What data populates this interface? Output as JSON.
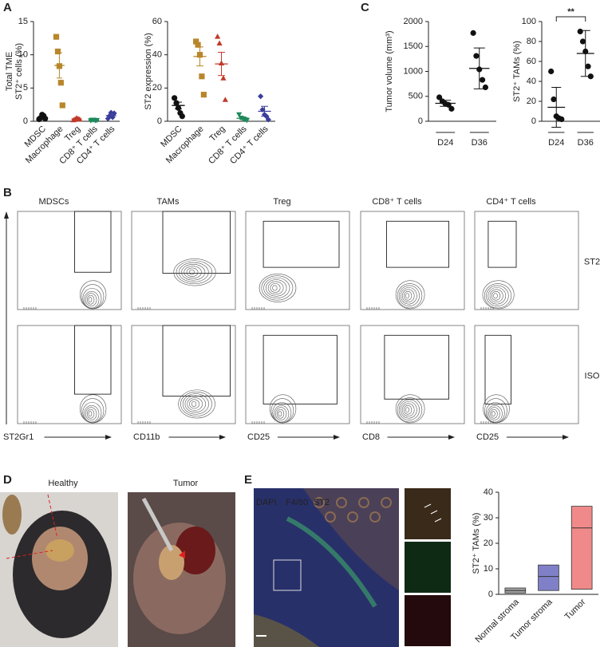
{
  "panel_labels": [
    "A",
    "B",
    "C",
    "D",
    "E"
  ],
  "chart_data": [
    {
      "type": "dot",
      "y_label": [
        "Total TME",
        "ST2⁺ cells (%)"
      ],
      "categories": [
        "MDSC",
        "Macrophage",
        "Treg",
        "CD8⁺ T cells",
        "CD4⁺ T cells"
      ],
      "colors": [
        "#111111",
        "#b8862b",
        "#c0392b",
        "#1e8a5a",
        "#3a3d9a"
      ],
      "markers": [
        "circle",
        "square",
        "triangle",
        "triangle-down",
        "diamond"
      ],
      "points": [
        [
          0.3,
          0.5,
          1.0,
          0.8,
          0.4
        ],
        [
          12.7,
          10.5,
          8.3,
          5.8,
          2.4
        ],
        [
          0.2,
          0.3,
          0.5,
          0.4,
          0.3
        ],
        [
          0.1,
          0.2,
          0.2,
          0.1,
          0.15
        ],
        [
          0.4,
          0.8,
          1.3,
          0.6,
          1.2
        ]
      ],
      "mean": [
        0.6,
        8.4,
        0.35,
        0.15,
        0.85
      ],
      "error": [
        0.15,
        1.9,
        0.05,
        0.03,
        0.2
      ],
      "ylim": [
        0,
        15
      ],
      "yticks": [
        0,
        5,
        10,
        15
      ]
    },
    {
      "type": "dot",
      "y_label": "ST2 expression (%)",
      "categories": [
        "MDSC",
        "Macrophage",
        "Treg",
        "CD8⁺ T cells",
        "CD4⁺ T cells"
      ],
      "colors": [
        "#111111",
        "#b8862b",
        "#c0392b",
        "#1e8a5a",
        "#3a3d9a"
      ],
      "markers": [
        "circle",
        "square",
        "triangle",
        "triangle-down",
        "diamond"
      ],
      "points": [
        [
          14,
          11,
          8,
          5,
          3
        ],
        [
          48,
          46,
          40,
          27,
          16
        ],
        [
          51,
          47,
          35,
          26,
          13
        ],
        [
          4,
          2,
          1.5,
          1,
          0.5
        ],
        [
          15,
          7,
          4,
          3,
          1
        ]
      ],
      "mean": [
        9.5,
        39,
        34.5,
        1.8,
        6
      ],
      "error": [
        2,
        5.7,
        7,
        0.6,
        3
      ],
      "ylim": [
        0,
        60
      ],
      "yticks": [
        0,
        20,
        40,
        60
      ]
    },
    {
      "type": "dot",
      "y_label": "Tumor volume (mm³)",
      "categories": [
        "D24",
        "D36"
      ],
      "colors": [
        "#111111",
        "#111111"
      ],
      "markers": [
        "circle",
        "circle"
      ],
      "points": [
        [
          480,
          400,
          350,
          330,
          250
        ],
        [
          1770,
          1310,
          1040,
          830,
          680
        ]
      ],
      "mean": [
        360,
        1060
      ],
      "error": [
        60,
        410
      ],
      "ylim": [
        0,
        2000
      ],
      "yticks": [
        0,
        500,
        1000,
        1500,
        2000
      ]
    },
    {
      "type": "dot",
      "y_label": "ST2⁺ TAMs (%)",
      "categories": [
        "D24",
        "D36"
      ],
      "colors": [
        "#111111",
        "#111111"
      ],
      "markers": [
        "circle",
        "circle"
      ],
      "points": [
        [
          50,
          22,
          5,
          3,
          2
        ],
        [
          90,
          80,
          70,
          55,
          45
        ]
      ],
      "mean": [
        14,
        68
      ],
      "error": [
        20,
        23
      ],
      "significance": "**",
      "ylim": [
        0,
        100
      ],
      "yticks": [
        0,
        20,
        40,
        60,
        80,
        100
      ]
    },
    {
      "type": "floating-bar",
      "y_label": "ST2⁺ TAMs (%)",
      "categories": [
        "Normal stroma",
        "Tumor stroma",
        "Tumor"
      ],
      "colors": [
        "#a0a0a0",
        "#8080c8",
        "#f08a8a"
      ],
      "low": [
        0.5,
        1.5,
        2
      ],
      "high": [
        2.5,
        11.5,
        34.5
      ],
      "mean": [
        1.5,
        7,
        26
      ],
      "ylim": [
        0,
        40
      ],
      "yticks": [
        0,
        10,
        20,
        30,
        40
      ]
    }
  ],
  "flow": {
    "columns": [
      "MDSCs",
      "TAMs",
      "Treg",
      "CD8⁺ T cells",
      "CD4⁺ T cells"
    ],
    "rows": [
      "ST2",
      "ISO"
    ],
    "x_labels": [
      "Gr1",
      "CD11b",
      "CD25",
      "CD8",
      "CD25"
    ],
    "y_label": "ST2"
  },
  "photos": {
    "titles": [
      "Healthy",
      "Tumor"
    ]
  },
  "micrograph": {
    "channels": [
      "DAPI",
      "F4/80",
      "ST2"
    ],
    "channel_colors": [
      "#3a8fe0",
      "#2ea84a",
      "#e03030"
    ]
  }
}
